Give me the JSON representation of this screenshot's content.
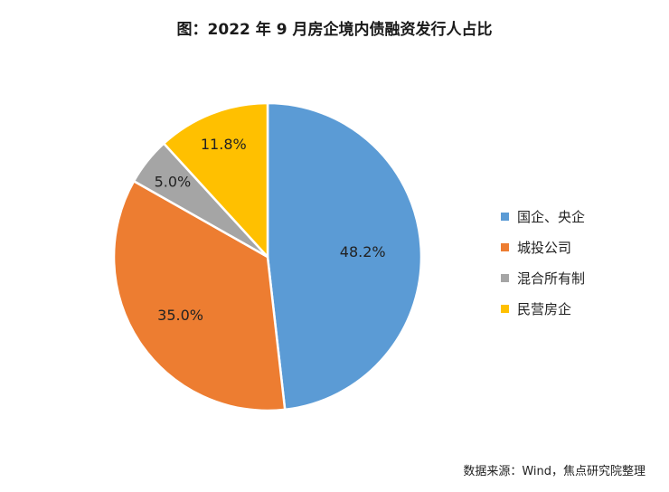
{
  "chart_data": {
    "type": "pie",
    "title": "图：2022 年 9 月房企境内债融资发行人占比",
    "slices": [
      {
        "name": "国企、央企",
        "value": 48.2,
        "label": "48.2%",
        "color": "#5B9BD5"
      },
      {
        "name": "城投公司",
        "value": 35.0,
        "label": "35.0%",
        "color": "#ED7D31"
      },
      {
        "name": "混合所有制",
        "value": 5.0,
        "label": "5.0%",
        "color": "#A5A5A5"
      },
      {
        "name": "民营房企",
        "value": 11.8,
        "label": "11.8%",
        "color": "#FFC000"
      }
    ],
    "legend": "right",
    "start_angle": "12 o'clock",
    "direction": "clockwise",
    "source": "数据来源：Wind，焦点研究院整理"
  }
}
